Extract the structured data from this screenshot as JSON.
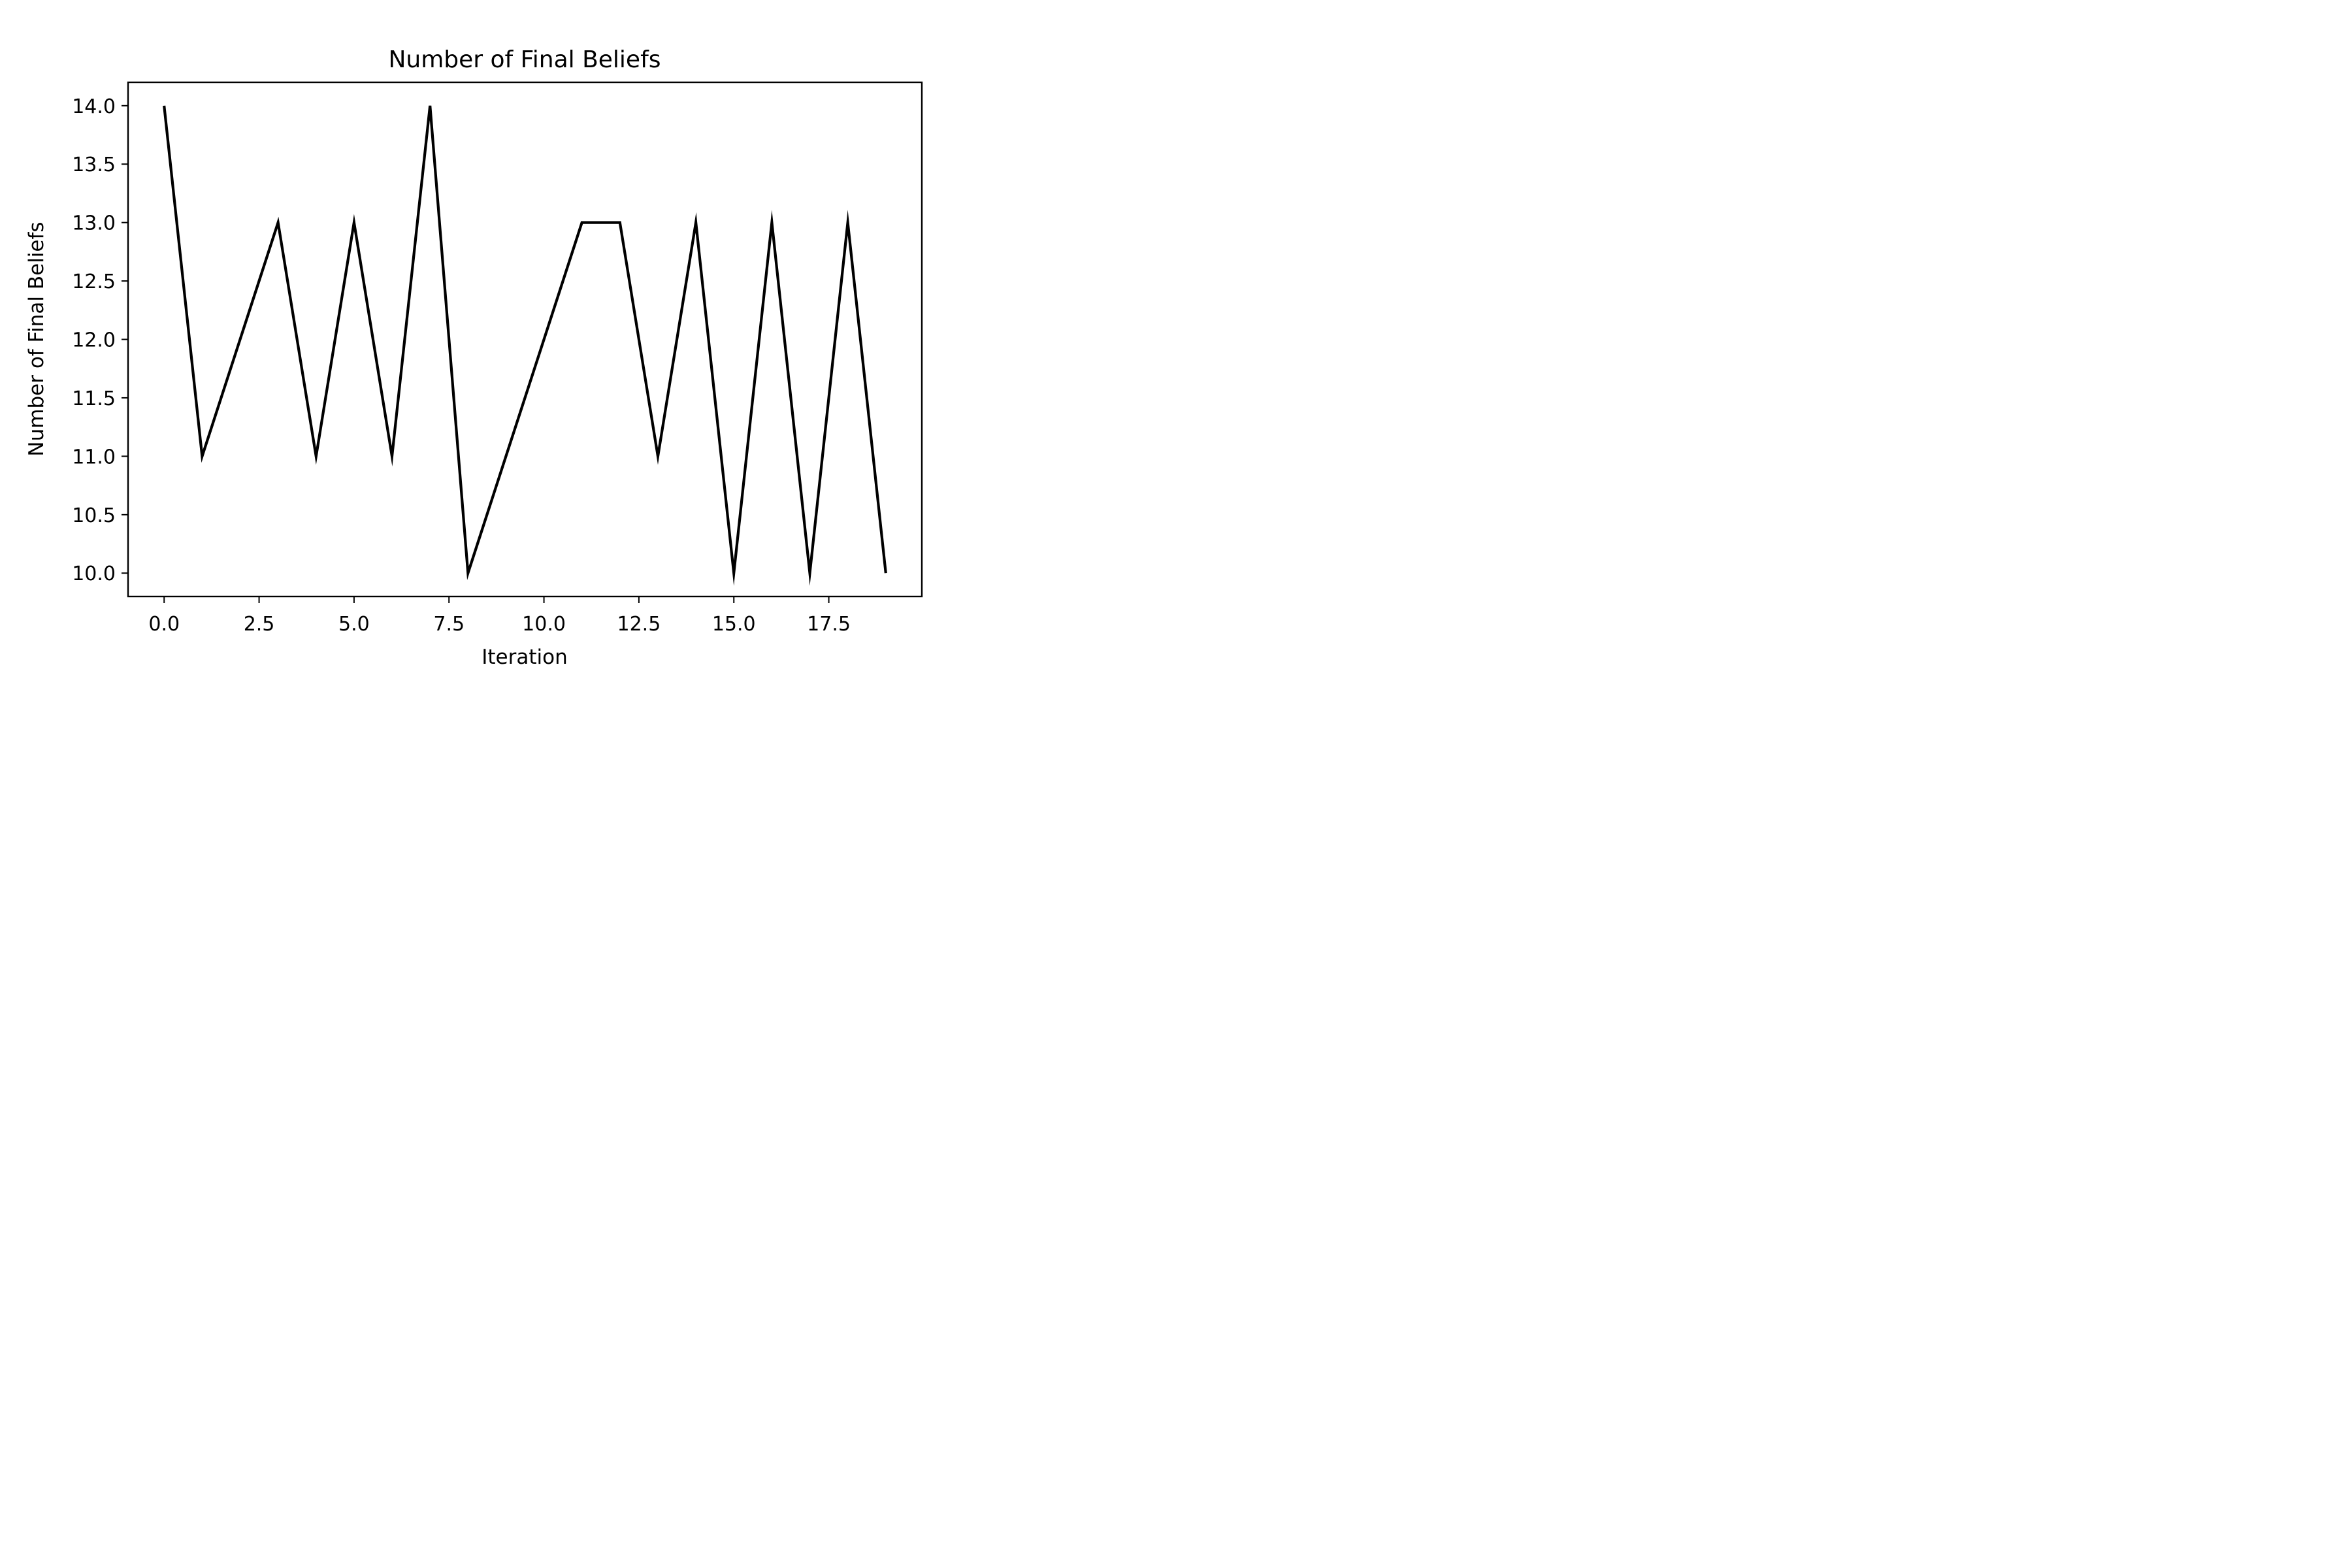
{
  "chart_data": {
    "type": "line",
    "title": "Number of Final Beliefs",
    "xlabel": "Iteration",
    "ylabel": "Number of Final Beliefs",
    "xlim": [
      -0.95,
      19.95
    ],
    "ylim": [
      9.8,
      14.2
    ],
    "x_ticks": [
      0.0,
      2.5,
      5.0,
      7.5,
      10.0,
      12.5,
      15.0,
      17.5
    ],
    "x_tick_labels": [
      "0.0",
      "2.5",
      "5.0",
      "7.5",
      "10.0",
      "12.5",
      "15.0",
      "17.5"
    ],
    "y_ticks": [
      10.0,
      10.5,
      11.0,
      11.5,
      12.0,
      12.5,
      13.0,
      13.5,
      14.0
    ],
    "y_tick_labels": [
      "10.0",
      "10.5",
      "11.0",
      "11.5",
      "12.0",
      "12.5",
      "13.0",
      "13.5",
      "14.0"
    ],
    "grid": false,
    "series": [
      {
        "color": "#000000",
        "x": [
          0,
          1,
          2,
          3,
          4,
          5,
          6,
          7,
          8,
          9,
          10,
          11,
          12,
          13,
          14,
          15,
          16,
          17,
          18,
          19
        ],
        "y": [
          14,
          11,
          12,
          13,
          11,
          13,
          11,
          14,
          10,
          11,
          12,
          13,
          13,
          11,
          13,
          10,
          13,
          10,
          13,
          10
        ]
      }
    ]
  }
}
